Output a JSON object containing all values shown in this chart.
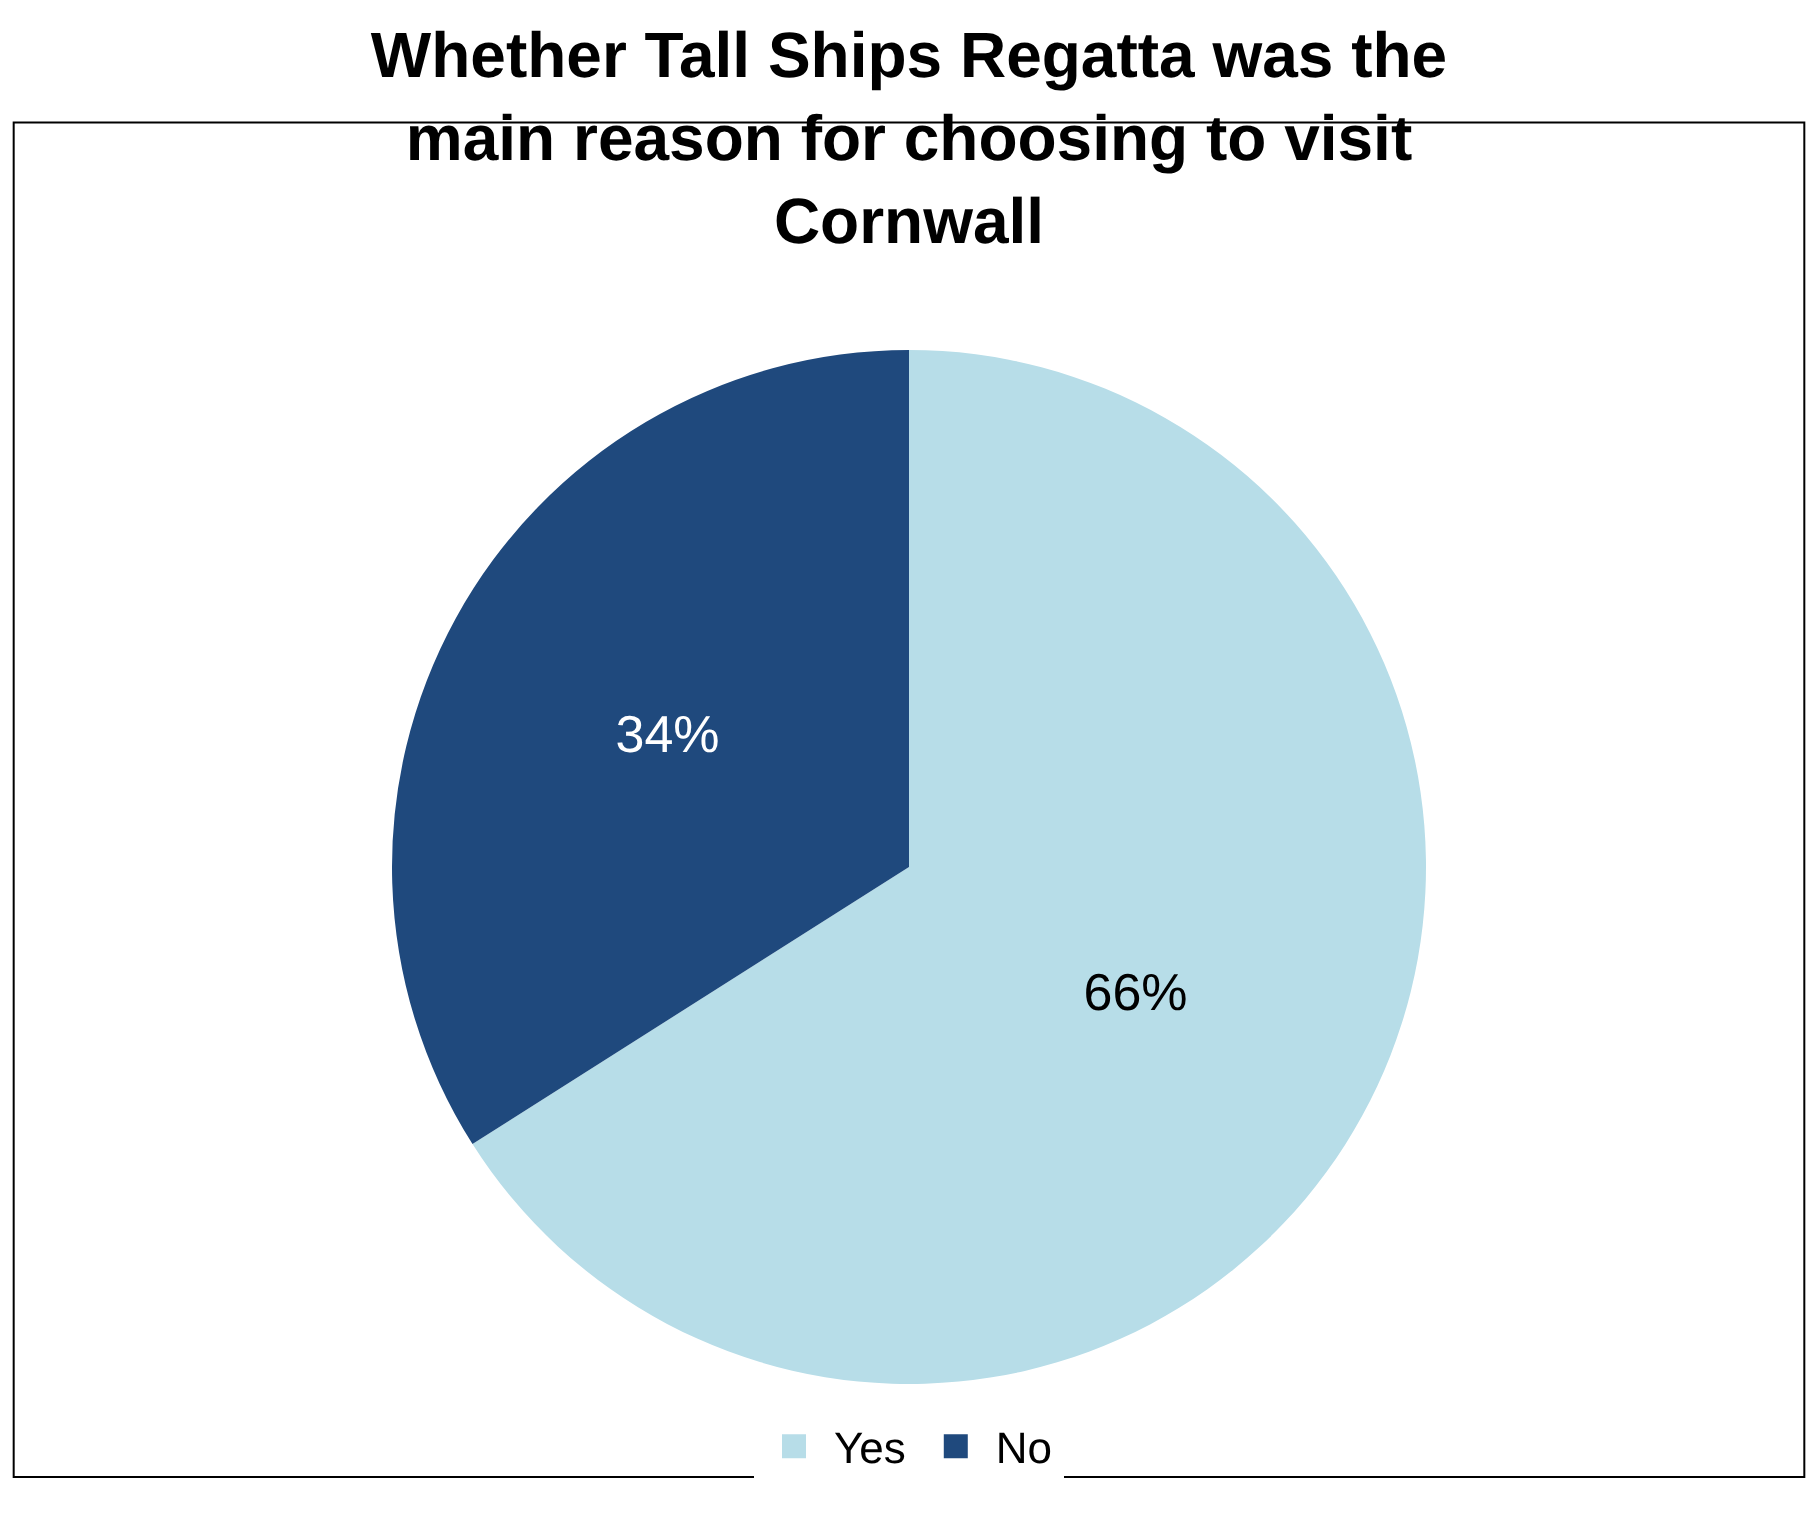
{
  "chart_data": {
    "type": "pie",
    "title": "Whether Tall Ships Regatta was the main reason for choosing to visit Cornwall",
    "categories": [
      "Yes",
      "No"
    ],
    "values": [
      66,
      34
    ],
    "value_labels": [
      "66%",
      "34%"
    ],
    "colors": [
      "#b7dde8",
      "#1f497d"
    ],
    "legend": "bottom"
  }
}
